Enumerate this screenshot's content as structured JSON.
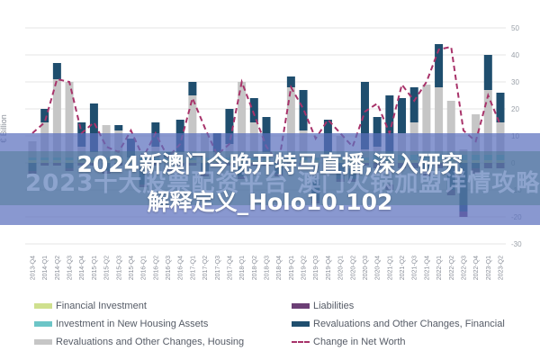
{
  "chart_data": {
    "type": "bar",
    "stacked": true,
    "title": "",
    "xlabel": "",
    "ylabel": "€ Billion",
    "ylim": [
      -30,
      50
    ],
    "yticks": [
      50,
      40,
      30,
      20,
      10,
      0,
      -10,
      -20,
      -30
    ],
    "y_axis_position": "right",
    "grid": true,
    "legend_position": "bottom",
    "categories": [
      "2013-Q4",
      "2014-Q1",
      "2014-Q2",
      "2014-Q3",
      "2014-Q4",
      "2015-Q1",
      "2015-Q2",
      "2015-Q3",
      "2015-Q4",
      "2016-Q1",
      "2016-Q2",
      "2016-Q3",
      "2016-Q4",
      "2017-Q1",
      "2017-Q2",
      "2017-Q3",
      "2017-Q4",
      "2018-Q1",
      "2018-Q2",
      "2018-Q3",
      "2018-Q4",
      "2019-Q1",
      "2019-Q2",
      "2019-Q3",
      "2019-Q4",
      "2020-Q1",
      "2020-Q2",
      "2020-Q3",
      "2020-Q4",
      "2021-Q1",
      "2021-Q2",
      "2021-Q3",
      "2021-Q4",
      "2022-Q1",
      "2022-Q2",
      "2022-Q3",
      "2022-Q4",
      "2023-Q1",
      "2023-Q2"
    ],
    "series": [
      {
        "name": "Financial Investment",
        "color": "#cfe08e",
        "kind": "bar",
        "values": [
          1,
          1,
          1,
          1,
          1,
          1,
          1,
          1,
          1,
          1,
          1,
          1,
          1,
          1,
          1,
          1,
          1,
          1,
          1,
          1,
          1,
          1,
          1,
          1,
          1,
          1,
          1,
          1,
          1,
          1,
          1,
          1,
          1,
          1,
          1,
          1,
          1,
          1,
          1
        ]
      },
      {
        "name": "Investment in New Housing Assets",
        "color": "#6cc5c7",
        "kind": "bar",
        "values": [
          1,
          1,
          1,
          1,
          1,
          1,
          1,
          1,
          1,
          1,
          1,
          1,
          1,
          1,
          1,
          1,
          1,
          1,
          1,
          1,
          1,
          1,
          1,
          1,
          1,
          1,
          1,
          1,
          2,
          2,
          2,
          2,
          2,
          2,
          2,
          2,
          2,
          2,
          2
        ]
      },
      {
        "name": "Revaluations and Other Changes, Housing",
        "color": "#c6c6c6",
        "kind": "bar",
        "values": [
          6,
          13,
          29,
          28,
          4,
          2,
          12,
          10,
          -1,
          -2,
          4,
          -2,
          2,
          23,
          9,
          2,
          5,
          28,
          13,
          2,
          2,
          26,
          10,
          -6,
          -1,
          8,
          -2,
          3,
          3,
          -8,
          8,
          12,
          26,
          25,
          20,
          2,
          15,
          24,
          12
        ]
      },
      {
        "name": "Revaluations and Other Changes, Financial",
        "color": "#1f4e6e",
        "kind": "bar",
        "values": [
          -3,
          5,
          6,
          -2,
          9,
          18,
          -3,
          2,
          7,
          -6,
          9,
          2,
          12,
          5,
          -4,
          7,
          13,
          -5,
          9,
          13,
          -4,
          4,
          15,
          -8,
          14,
          -6,
          -4,
          25,
          11,
          22,
          13,
          13,
          -3,
          16,
          -10,
          -18,
          -2,
          13,
          11
        ]
      },
      {
        "name": "Liabilities",
        "color": "#6b3f75",
        "kind": "bar",
        "values": [
          -1,
          -1,
          -1,
          -1,
          -1,
          -1,
          -1,
          -1,
          -1,
          -1,
          -1,
          -1,
          -1,
          -1,
          -1,
          -1,
          -1,
          -1,
          -1,
          -1,
          -1,
          -1,
          -1,
          -1,
          -1,
          -1,
          -1,
          -1,
          -2,
          -2,
          -2,
          -2,
          -2,
          -2,
          -2,
          -2,
          -2,
          -2,
          -2
        ]
      },
      {
        "name": "Change in Net Worth",
        "color": "#a8336a",
        "kind": "line",
        "style": "dashed",
        "values": [
          11,
          15,
          31,
          30,
          11,
          15,
          6,
          4,
          12,
          2,
          11,
          2,
          7,
          24,
          13,
          3,
          7,
          30,
          18,
          6,
          0,
          28,
          20,
          9,
          16,
          11,
          6,
          19,
          22,
          11,
          29,
          23,
          30,
          42,
          43,
          12,
          8,
          25,
          14
        ]
      }
    ]
  },
  "axis": {
    "ylabel": "€ Billion",
    "ticks": [
      "50",
      "40",
      "30",
      "20",
      "10",
      "0",
      "-10",
      "-20",
      "-30"
    ]
  },
  "overlay": {
    "headline_line1": "2024新澳门今晚开特马直播,深入研究",
    "headline_line2": "解释定义_Holo10.102",
    "watermark": "2023十大股票配资平台 澳门火锅加盟详情攻略"
  },
  "legend": {
    "items": [
      {
        "label": "Financial Investment",
        "color": "#cfe08e",
        "type": "bar"
      },
      {
        "label": "Investment in New Housing Assets",
        "color": "#6cc5c7",
        "type": "bar"
      },
      {
        "label": "Revaluations and Other Changes, Housing",
        "color": "#c6c6c6",
        "type": "bar"
      },
      {
        "label": "Liabilities",
        "color": "#6b3f75",
        "type": "bar"
      },
      {
        "label": "Revaluations and Other Changes, Financial",
        "color": "#1f4e6e",
        "type": "bar"
      },
      {
        "label": "Change in Net Worth",
        "color": "#a8336a",
        "type": "dash"
      }
    ]
  }
}
